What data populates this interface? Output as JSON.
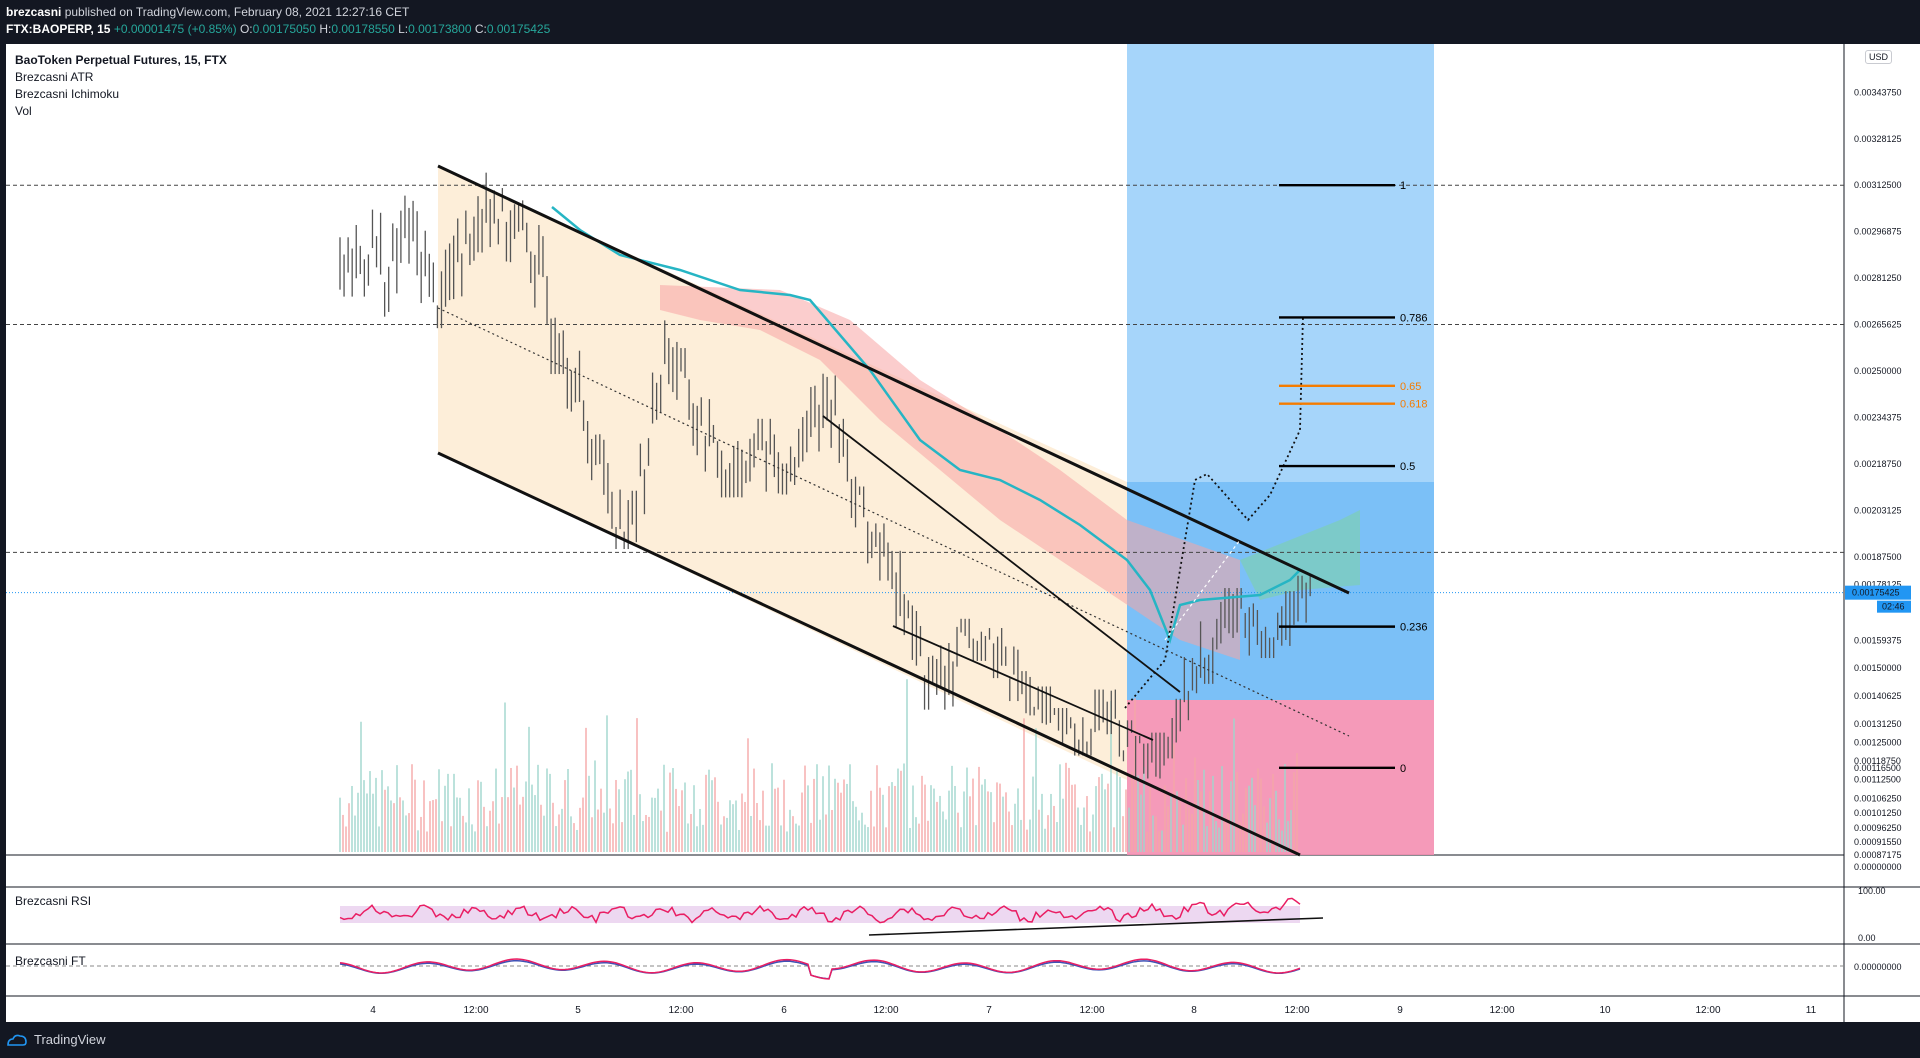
{
  "header": {
    "user": "brezcasni",
    "published": "published on TradingView.com, February 08, 2021 12:27:16 CET",
    "symbol": "FTX:BAOPERP, 15",
    "change": "+0.00001475 (+0.85%)",
    "o_label": "O:",
    "o_value": "0.00175050",
    "h_label": "H:",
    "h_value": "0.00178550",
    "l_label": "L:",
    "l_value": "0.00173800",
    "c_label": "C:",
    "c_value": "0.00175425",
    "last_price": "0.00175425"
  },
  "legend": {
    "title": "BaoToken Perpetual Futures, 15, FTX",
    "items": [
      "Brezcasni ATR",
      "Brezcasni Ichimoku",
      "Vol"
    ]
  },
  "currency": "USD",
  "panes": {
    "rsi_label": "Brezcasni RSI",
    "ft_label": "Brezcasni FT"
  },
  "footer": {
    "brand": "TradingView"
  },
  "colors": {
    "background": "#131722",
    "candle": "#555555",
    "channel_fill": "#fdebd2",
    "long_zone": "#90caf9",
    "long_zone_dark": "#64b5f6",
    "short_zone": "#f48fb1",
    "ichimoku_line": "#26b5c4",
    "cloud_bear": "#f8a4a4",
    "cloud_bull": "#7ecfb5",
    "rsi": "#e91e63",
    "fib_black": "#000000",
    "fib_orange": "#f57c00",
    "price_line": "#2196f3"
  },
  "chart_data": {
    "type": "line",
    "title": "BaoToken Perpetual Futures, 15, FTX",
    "x_ticks": [
      "4",
      "12:00",
      "5",
      "12:00",
      "6",
      "12:00",
      "7",
      "12:00",
      "8",
      "12:00",
      "9",
      "12:00",
      "10",
      "12:00",
      "11"
    ],
    "y_ticks": [
      "0.00343750",
      "0.00328125",
      "0.00312500",
      "0.00296875",
      "0.00281250",
      "0.00265625",
      "0.00250000",
      "0.00234375",
      "0.00218750",
      "0.00203125",
      "0.00187500",
      "0.00178125",
      "0.00159375",
      "0.00150000",
      "0.00140625",
      "0.00131250",
      "0.00125000",
      "0.00118750",
      "0.00116500",
      "0.00112500",
      "0.00106250",
      "0.00101250",
      "0.00096250",
      "0.00091550",
      "0.00087175"
    ],
    "ylim": [
      0.00087175,
      0.0036
    ],
    "last_price": 0.00175425,
    "last_price_countdown": "02:46",
    "close_series": [
      0.00285,
      0.00294,
      0.00278,
      0.00299,
      0.00288,
      0.00274,
      0.00283,
      0.00296,
      0.00309,
      0.00301,
      0.00297,
      0.00289,
      0.00266,
      0.00258,
      0.00232,
      0.00221,
      0.00203,
      0.00197,
      0.00226,
      0.00258,
      0.00249,
      0.00233,
      0.00224,
      0.00215,
      0.0022,
      0.00226,
      0.00217,
      0.00216,
      0.00231,
      0.00242,
      0.00226,
      0.00204,
      0.00192,
      0.00186,
      0.00167,
      0.00149,
      0.00141,
      0.00156,
      0.00161,
      0.00158,
      0.00152,
      0.00144,
      0.00139,
      0.00132,
      0.00129,
      0.00125,
      0.00138,
      0.00128,
      0.00123,
      0.00117,
      0.00124,
      0.00135,
      0.0015,
      0.00162,
      0.00171,
      0.00166,
      0.00159,
      0.00163,
      0.0017,
      0.00175
    ],
    "fib_levels": [
      {
        "label": "1",
        "value": 0.003125
      },
      {
        "label": "0.786",
        "value": 0.00268
      },
      {
        "label": "0.65",
        "value": 0.00245
      },
      {
        "label": "0.618",
        "value": 0.00239
      },
      {
        "label": "0.5",
        "value": 0.00218
      },
      {
        "label": "0.236",
        "value": 0.00164
      },
      {
        "label": "0",
        "value": 0.001165
      }
    ],
    "horizontal_levels": [
      0.003125,
      0.00265625,
      0.00189
    ],
    "rsi_ticks": [
      "100.00",
      "0.00"
    ],
    "ft_ticks": [
      "0.00000000"
    ],
    "volume_ticks": [
      "0.00000000"
    ]
  }
}
